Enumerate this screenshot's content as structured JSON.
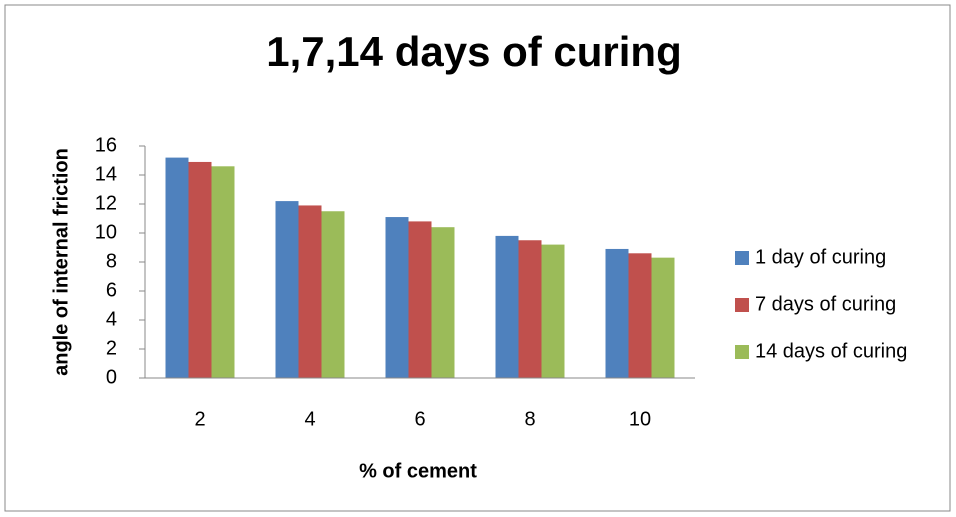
{
  "chart_data": {
    "type": "bar",
    "title": "1,7,14 days of curing",
    "x_label": "% of cement",
    "y_label": "angle of internal friction",
    "categories": [
      "2",
      "4",
      "6",
      "8",
      "10"
    ],
    "series": [
      {
        "name": "1 day of curing",
        "color": "#4f81bd",
        "values": [
          15.2,
          12.2,
          11.1,
          9.8,
          8.9
        ]
      },
      {
        "name": "7 days of curing",
        "color": "#c0504d",
        "values": [
          14.9,
          11.9,
          10.8,
          9.5,
          8.6
        ]
      },
      {
        "name": "14 days of curing",
        "color": "#9bbb59",
        "values": [
          14.6,
          11.5,
          10.4,
          9.2,
          8.3
        ]
      }
    ],
    "ylim": [
      0,
      16
    ],
    "yticks": [
      0,
      2,
      4,
      6,
      8,
      10,
      12,
      14,
      16
    ],
    "grid": false,
    "legend": "right"
  }
}
